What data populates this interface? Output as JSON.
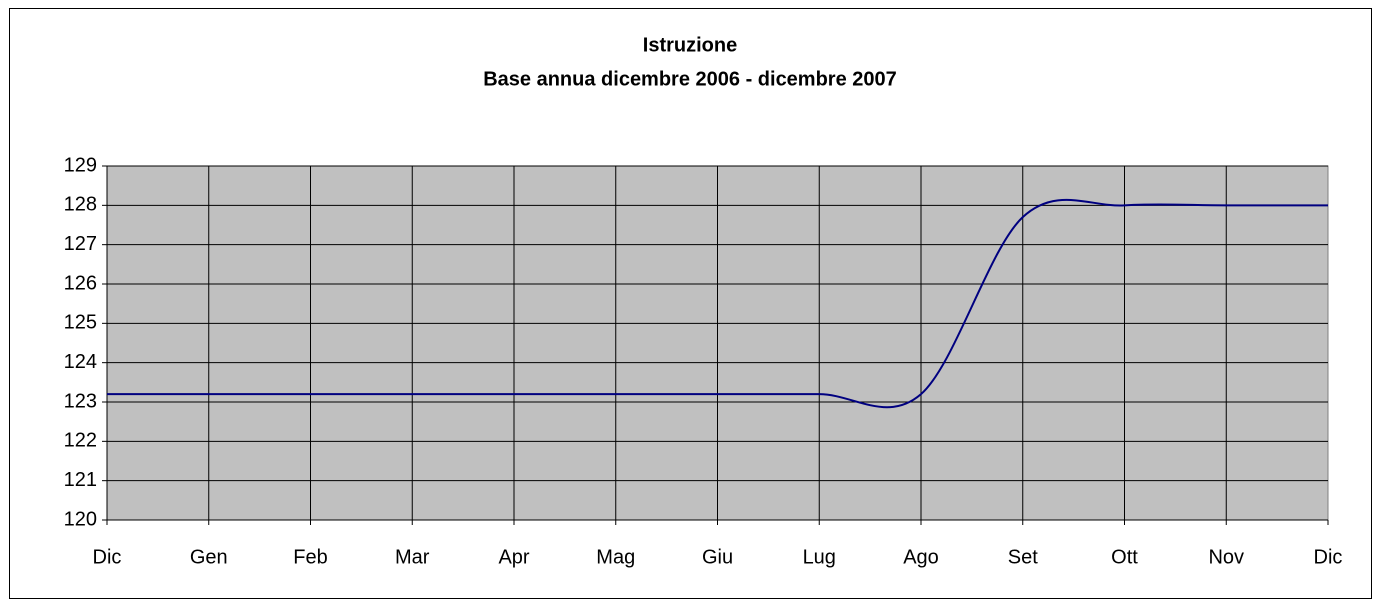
{
  "chart_data": {
    "type": "line",
    "title": "Istruzione",
    "subtitle": "Base annua dicembre 2006 - dicembre 2007",
    "categories": [
      "Dic",
      "Gen",
      "Feb",
      "Mar",
      "Apr",
      "Mag",
      "Giu",
      "Lug",
      "Ago",
      "Set",
      "Ott",
      "Nov",
      "Dic"
    ],
    "series": [
      {
        "color": "#000080",
        "values": [
          123.2,
          123.2,
          123.2,
          123.2,
          123.2,
          123.2,
          123.2,
          123.2,
          123.2,
          127.7,
          128.0,
          128.0,
          128.0
        ]
      }
    ],
    "ylim": [
      120,
      129
    ],
    "yticks": [
      120,
      121,
      122,
      123,
      124,
      125,
      126,
      127,
      128,
      129
    ],
    "grid": true,
    "smooth": true,
    "plot_background": "#c0c0c0"
  }
}
